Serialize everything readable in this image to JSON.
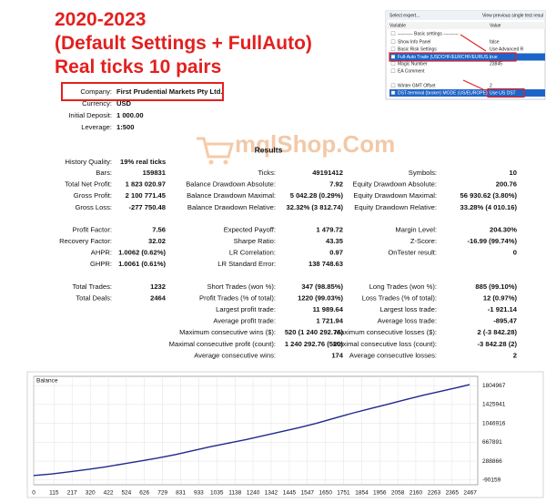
{
  "title_lines": [
    "2020-2023",
    "(Default Settings + FullAuto)",
    "Real ticks 10 pairs"
  ],
  "settings_panel": {
    "tabs": [
      "Select expert...",
      "View previous single test resul"
    ],
    "columns": [
      "Variable",
      "Value"
    ],
    "rows": [
      {
        "name": "---------- Basic settings ----------"
      },
      {
        "name": "Show Info Panel",
        "value": "false"
      },
      {
        "name": "Basic Risk Settings",
        "value": "Use Advanced R"
      },
      {
        "name": "Full-Auto Trade (USDCHF/EURCHF/EURUS...",
        "value": "true"
      },
      {
        "name": "Magic Number",
        "value": "23845"
      },
      {
        "name": "EA Comment"
      },
      {
        "name": "Winter GMT Offset",
        "value": "2"
      },
      {
        "name": "DST-terminal (broker) MODE (US/EUROPE)",
        "value": "Use US DST"
      }
    ]
  },
  "watermark": "mqlShop.Com",
  "report": {
    "header": [
      {
        "label": "Company:",
        "value": "First Prudential Markets Pty Ltd."
      },
      {
        "label": "Currency:",
        "value": "USD"
      },
      {
        "label": "Initial Deposit:",
        "value": "1 000.00"
      },
      {
        "label": "Leverage:",
        "value": "1:500"
      }
    ],
    "title": "Results",
    "history_quality": {
      "label": "History Quality:",
      "value": "19% real ticks"
    },
    "sections": [
      [
        {
          "left": {
            "label": "Bars:",
            "value": "159831"
          },
          "middle": {
            "label": "Ticks:",
            "value": "49191412"
          },
          "right": {
            "label": "Symbols:",
            "value": "10"
          }
        },
        {
          "left": {
            "label": "Total Net Profit:",
            "value": "1 823 020.97"
          },
          "middle": {
            "label": "Balance Drawdown Absolute:",
            "value": "7.92"
          },
          "right": {
            "label": "Equity Drawdown Absolute:",
            "value": "200.76"
          }
        },
        {
          "left": {
            "label": "Gross Profit:",
            "value": "2 100 771.45"
          },
          "middle": {
            "label": "Balance Drawdown Maximal:",
            "value": "5 042.28 (0.29%)"
          },
          "right": {
            "label": "Equity Drawdown Maximal:",
            "value": "56 930.62 (3.80%)"
          }
        },
        {
          "left": {
            "label": "Gross Loss:",
            "value": "-277 750.48"
          },
          "middle": {
            "label": "Balance Drawdown Relative:",
            "value": "32.32% (3 812.74)"
          },
          "right": {
            "label": "Equity Drawdown Relative:",
            "value": "33.28% (4 010.16)"
          }
        }
      ],
      [
        {
          "left": {
            "label": "Profit Factor:",
            "value": "7.56"
          },
          "middle": {
            "label": "Expected Payoff:",
            "value": "1 479.72"
          },
          "right": {
            "label": "Margin Level:",
            "value": "204.30%"
          }
        },
        {
          "left": {
            "label": "Recovery Factor:",
            "value": "32.02"
          },
          "middle": {
            "label": "Sharpe Ratio:",
            "value": "43.35"
          },
          "right": {
            "label": "Z-Score:",
            "value": "-16.99 (99.74%)"
          }
        },
        {
          "left": {
            "label": "AHPR:",
            "value": "1.0062 (0.62%)"
          },
          "middle": {
            "label": "LR Correlation:",
            "value": "0.97"
          },
          "right": {
            "label": "OnTester result:",
            "value": "0"
          }
        },
        {
          "left": {
            "label": "GHPR:",
            "value": "1.0061 (0.61%)"
          },
          "middle": {
            "label": "LR Standard Error:",
            "value": "138 748.63"
          }
        }
      ],
      [
        {
          "left": {
            "label": "Total Trades:",
            "value": "1232"
          },
          "middle": {
            "label": "Short Trades (won %):",
            "value": "347 (98.85%)"
          },
          "right": {
            "label": "Long Trades (won %):",
            "value": "885 (99.10%)"
          }
        },
        {
          "left": {
            "label": "Total Deals:",
            "value": "2464"
          },
          "middle": {
            "label": "Profit Trades (% of total):",
            "value": "1220 (99.03%)"
          },
          "right": {
            "label": "Loss Trades (% of total):",
            "value": "12 (0.97%)"
          }
        },
        {
          "middle": {
            "label": "Largest profit trade:",
            "value": "11 989.64"
          },
          "right": {
            "label": "Largest loss trade:",
            "value": "-1 921.14"
          }
        },
        {
          "middle": {
            "label": "Average profit trade:",
            "value": "1 721.94"
          },
          "right": {
            "label": "Average loss trade:",
            "value": "-895.47"
          }
        },
        {
          "middle": {
            "label": "Maximum consecutive wins ($):",
            "value": "520 (1 240 292.76)"
          },
          "right": {
            "label": "Maximum consecutive losses ($):",
            "value": "2 (-3 842.28)"
          }
        },
        {
          "middle": {
            "label": "Maximal consecutive profit (count):",
            "value": "1 240 292.76 (520)"
          },
          "right": {
            "label": "Maximal consecutive loss (count):",
            "value": "-3 842.28 (2)"
          }
        },
        {
          "middle": {
            "label": "Average consecutive wins:",
            "value": "174"
          },
          "right": {
            "label": "Average consecutive losses:",
            "value": "2"
          }
        }
      ]
    ]
  },
  "chart_data": {
    "type": "line",
    "title": "Balance",
    "x": [
      0,
      100,
      200,
      300,
      400,
      500,
      600,
      700,
      800,
      900,
      1000,
      1100,
      1200,
      1300,
      1400,
      1500,
      1600,
      1700,
      1800,
      1900,
      2000,
      2100,
      2200,
      2300,
      2400,
      2464
    ],
    "series": [
      {
        "name": "Balance",
        "color": "#1f2a8a",
        "values": [
          1000,
          30000,
          75000,
          120000,
          170000,
          230000,
          290000,
          350000,
          420000,
          500000,
          580000,
          650000,
          720000,
          800000,
          880000,
          960000,
          1050000,
          1150000,
          1250000,
          1340000,
          1430000,
          1520000,
          1610000,
          1690000,
          1770000,
          1824021
        ]
      }
    ],
    "xlim": [
      0,
      2510
    ],
    "xticks": [
      0,
      115,
      217,
      320,
      422,
      524,
      626,
      729,
      831,
      933,
      1035,
      1138,
      1240,
      1342,
      1445,
      1547,
      1650,
      1751,
      1854,
      1956,
      2058,
      2160,
      2263,
      2365,
      2467
    ],
    "ylim": [
      -185000,
      1990000
    ],
    "yticks": [
      1804967,
      1425941,
      1046916,
      667891,
      288866,
      -90159
    ],
    "grid": true
  }
}
